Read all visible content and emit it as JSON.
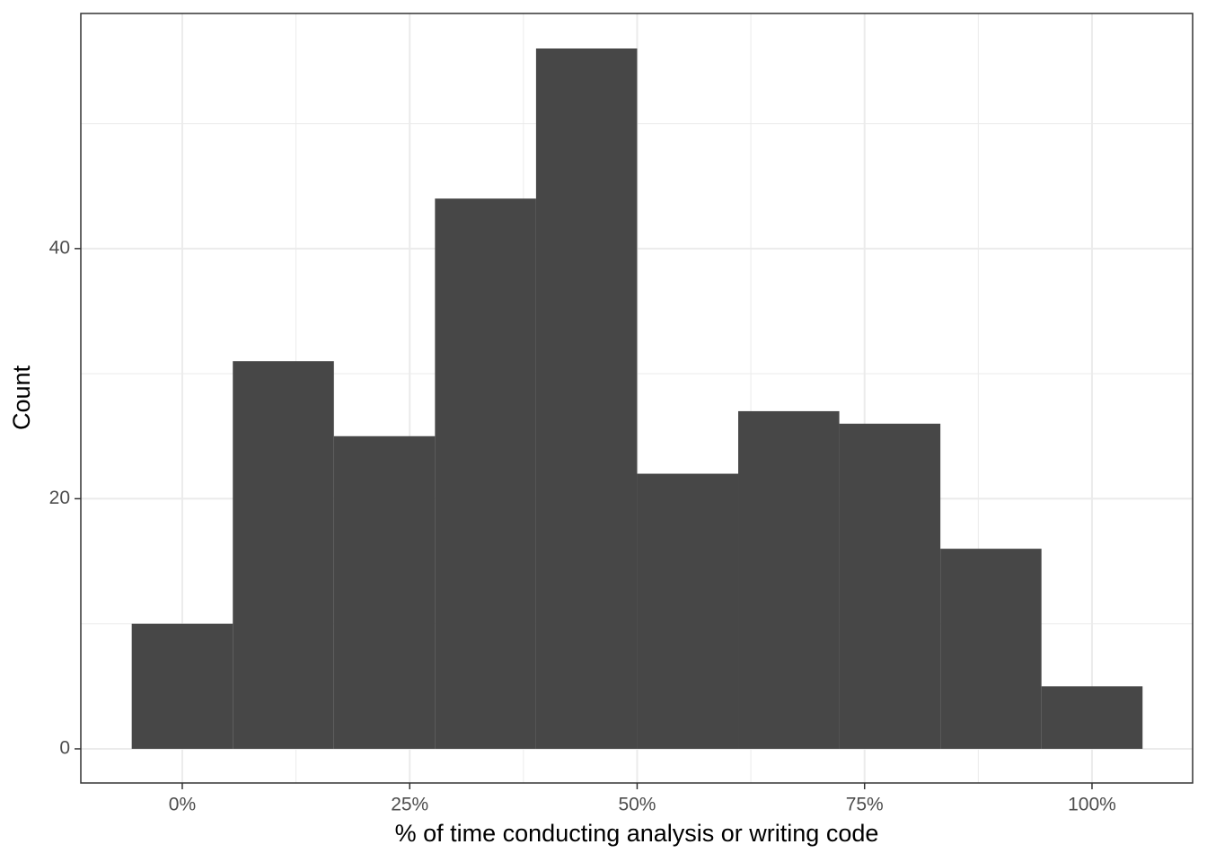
{
  "chart_data": {
    "type": "histogram",
    "xlabel": "% of time conducting analysis or writing code",
    "ylabel": "Count",
    "bins": [
      -5.556,
      5.556,
      16.667,
      27.778,
      38.889,
      50,
      61.111,
      72.222,
      83.333,
      94.444,
      105.556
    ],
    "values": [
      10,
      31,
      25,
      44,
      56,
      22,
      27,
      26,
      16,
      5
    ],
    "color": "#474747",
    "xlim": [
      -11.15,
      111.06
    ],
    "ylim": [
      -2.73,
      58.8
    ],
    "xticks": [
      {
        "value": 0,
        "label": "0%"
      },
      {
        "value": 25,
        "label": "25%"
      },
      {
        "value": 50,
        "label": "50%"
      },
      {
        "value": 75,
        "label": "75%"
      },
      {
        "value": 100,
        "label": "100%"
      }
    ],
    "yticks": [
      0,
      20,
      40
    ],
    "x_minor_grid": [
      12.5,
      37.5,
      62.5,
      87.5
    ],
    "y_minor_grid": [
      10,
      30,
      50
    ],
    "grid": true
  }
}
